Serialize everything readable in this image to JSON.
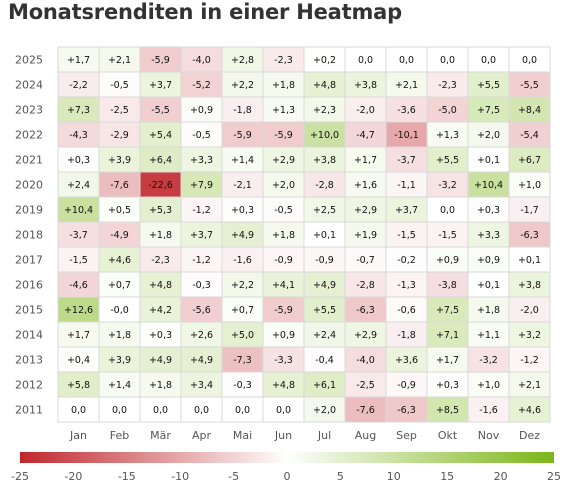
{
  "title": "Monatsrenditen in einer Heatmap",
  "chart_data": {
    "type": "heatmap",
    "title": "Monatsrenditen in einer Heatmap",
    "x_categories": [
      "Jan",
      "Feb",
      "Mär",
      "Apr",
      "Mai",
      "Jun",
      "Jul",
      "Aug",
      "Sep",
      "Okt",
      "Nov",
      "Dez"
    ],
    "y_categories": [
      "2025",
      "2024",
      "2023",
      "2022",
      "2021",
      "2020",
      "2019",
      "2018",
      "2017",
      "2016",
      "2015",
      "2014",
      "2013",
      "2012",
      "2011"
    ],
    "values": [
      [
        1.7,
        2.1,
        -5.9,
        -4.0,
        2.8,
        -2.3,
        0.2,
        0.0,
        0.0,
        0.0,
        0.0,
        0.0
      ],
      [
        -2.2,
        -0.5,
        3.7,
        -5.2,
        2.2,
        1.8,
        4.8,
        3.8,
        2.1,
        -2.3,
        5.5,
        -5.5
      ],
      [
        7.3,
        -2.5,
        -5.5,
        0.9,
        -1.8,
        1.3,
        2.3,
        -2.0,
        -3.6,
        -5.0,
        7.5,
        8.4
      ],
      [
        -4.3,
        -2.9,
        5.4,
        -0.5,
        -5.9,
        -5.9,
        10.0,
        -4.7,
        -10.1,
        1.3,
        2.0,
        -5.4
      ],
      [
        0.3,
        3.9,
        6.4,
        3.3,
        1.4,
        2.9,
        3.8,
        1.7,
        -3.7,
        5.5,
        0.1,
        6.7
      ],
      [
        2.4,
        -7.6,
        -22.6,
        7.9,
        -2.1,
        2.0,
        -2.8,
        1.6,
        -1.1,
        -3.2,
        10.4,
        1.0
      ],
      [
        10.4,
        0.5,
        5.3,
        -1.2,
        0.3,
        -0.5,
        2.5,
        2.9,
        3.7,
        0.0,
        0.3,
        -1.7
      ],
      [
        -3.7,
        -4.9,
        1.8,
        3.7,
        4.9,
        1.8,
        0.1,
        1.9,
        -1.5,
        -1.5,
        3.3,
        -6.3
      ],
      [
        -1.5,
        4.6,
        -2.3,
        -1.2,
        -1.6,
        -0.9,
        -0.9,
        -0.7,
        -0.2,
        0.9,
        0.9,
        0.1
      ],
      [
        -4.6,
        0.7,
        4.8,
        -0.3,
        2.2,
        4.1,
        4.9,
        -2.8,
        -1.3,
        -3.8,
        0.1,
        3.8
      ],
      [
        12.6,
        -0.0,
        4.2,
        -5.6,
        0.7,
        -5.9,
        5.5,
        -6.3,
        -0.6,
        7.5,
        1.8,
        -2.0
      ],
      [
        1.7,
        1.8,
        0.3,
        2.6,
        5.0,
        0.9,
        2.4,
        2.9,
        -1.8,
        7.1,
        1.1,
        3.2
      ],
      [
        0.4,
        3.9,
        4.9,
        4.9,
        -7.3,
        -3.3,
        -0.4,
        -4.0,
        3.6,
        1.7,
        -3.2,
        -1.2
      ],
      [
        5.8,
        1.4,
        1.8,
        3.4,
        -0.3,
        4.8,
        6.1,
        -2.5,
        -0.9,
        0.3,
        1.0,
        2.1
      ],
      [
        0.0,
        0.0,
        0.0,
        0.0,
        0.0,
        0.0,
        2.0,
        -7.6,
        -6.3,
        8.5,
        -1.6,
        4.6
      ]
    ],
    "color_scale": {
      "min": -25,
      "max": 25,
      "ticks": [
        "-25",
        "-20",
        "-15",
        "-10",
        "-5",
        "0",
        "5",
        "10",
        "15",
        "20",
        "25"
      ],
      "negative_color": "#c0272d",
      "zero_color": "#ffffff",
      "positive_color": "#7cb518"
    },
    "grid": true,
    "legend": "bottom"
  }
}
